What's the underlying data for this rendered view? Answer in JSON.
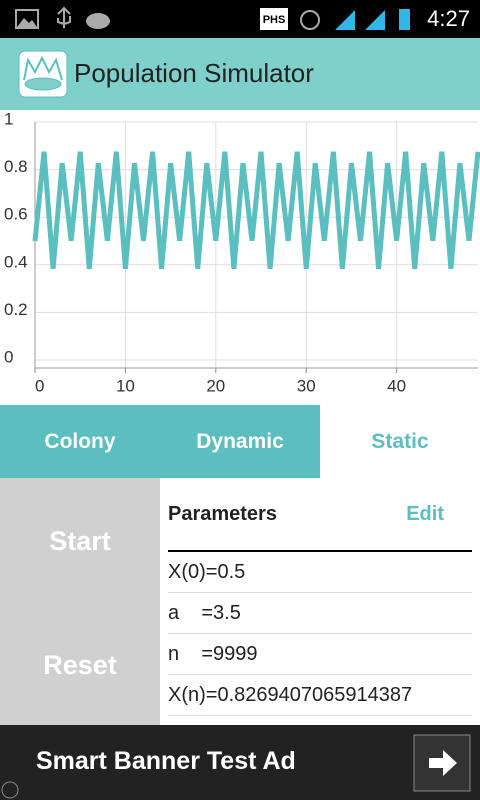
{
  "status_bar": {
    "carrier_label": "PHS",
    "time": "4:27"
  },
  "app_bar": {
    "title": "Population Simulator"
  },
  "chart_data": {
    "type": "line",
    "x": [
      0,
      1,
      2,
      3,
      4,
      5,
      6,
      7,
      8,
      9,
      10,
      11,
      12,
      13,
      14,
      15,
      16,
      17,
      18,
      19,
      20,
      21,
      22,
      23,
      24,
      25,
      26,
      27,
      28,
      29,
      30,
      31,
      32,
      33,
      34,
      35,
      36,
      37,
      38,
      39,
      40,
      41,
      42,
      43,
      44,
      45,
      46,
      47,
      48,
      49
    ],
    "series": [
      {
        "color": "#5bbfbf",
        "values": [
          0.5,
          0.875,
          0.383,
          0.827,
          0.501,
          0.875,
          0.383,
          0.827,
          0.501,
          0.875,
          0.383,
          0.827,
          0.501,
          0.875,
          0.383,
          0.827,
          0.501,
          0.875,
          0.383,
          0.827,
          0.501,
          0.875,
          0.383,
          0.827,
          0.501,
          0.875,
          0.383,
          0.827,
          0.501,
          0.875,
          0.383,
          0.827,
          0.501,
          0.875,
          0.383,
          0.827,
          0.501,
          0.875,
          0.383,
          0.827,
          0.501,
          0.875,
          0.383,
          0.827,
          0.501,
          0.875,
          0.383,
          0.827,
          0.501,
          0.875
        ]
      }
    ],
    "xlim": [
      0,
      49
    ],
    "xticks": [
      0,
      10,
      20,
      30,
      40
    ],
    "ylim": [
      0,
      1
    ],
    "yticks": [
      0,
      0.2,
      0.4,
      0.6,
      0.8,
      1
    ],
    "grid": true
  },
  "tabs": [
    "Colony",
    "Dynamic",
    "Static"
  ],
  "buttons": {
    "start": "Start",
    "reset": "Reset"
  },
  "parameters": {
    "heading": "Parameters",
    "edit": "Edit",
    "rows": [
      "X(0)=0.5",
      "a    =3.5",
      "n    =9999",
      "X(n)=0.8269407065914387"
    ]
  },
  "ad": {
    "text": "Smart Banner Test Ad"
  }
}
